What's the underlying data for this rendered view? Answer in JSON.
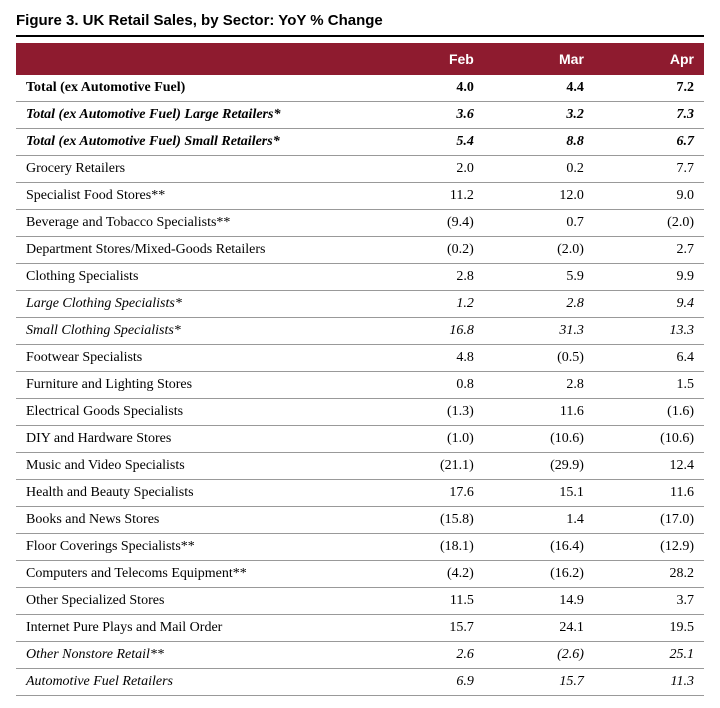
{
  "title": "Figure 3. UK Retail Sales, by Sector: YoY % Change",
  "table": {
    "type": "table",
    "header_bg": "#8e1b2f",
    "header_fg": "#ffffff",
    "border_color": "#999999",
    "columns": [
      "",
      "Feb",
      "Mar",
      "Apr"
    ],
    "rows": [
      {
        "label": "Total (ex Automotive Fuel)",
        "feb": "4.0",
        "mar": "4.4",
        "apr": "7.2",
        "style": "bold"
      },
      {
        "label": "Total (ex Automotive Fuel) Large Retailers*",
        "feb": "3.6",
        "mar": "3.2",
        "apr": "7.3",
        "style": "bold-italic"
      },
      {
        "label": "Total (ex Automotive Fuel) Small Retailers*",
        "feb": "5.4",
        "mar": "8.8",
        "apr": "6.7",
        "style": "bold-italic"
      },
      {
        "label": "Grocery Retailers",
        "feb": "2.0",
        "mar": "0.2",
        "apr": "7.7",
        "style": ""
      },
      {
        "label": "Specialist Food Stores**",
        "feb": "11.2",
        "mar": "12.0",
        "apr": "9.0",
        "style": ""
      },
      {
        "label": "Beverage and Tobacco Specialists**",
        "feb": "(9.4)",
        "mar": "0.7",
        "apr": "(2.0)",
        "style": ""
      },
      {
        "label": "Department Stores/Mixed-Goods Retailers",
        "feb": "(0.2)",
        "mar": "(2.0)",
        "apr": "2.7",
        "style": ""
      },
      {
        "label": "Clothing Specialists",
        "feb": "2.8",
        "mar": "5.9",
        "apr": "9.9",
        "style": ""
      },
      {
        "label": "Large Clothing Specialists*",
        "feb": "1.2",
        "mar": "2.8",
        "apr": "9.4",
        "style": "italic"
      },
      {
        "label": "Small Clothing Specialists*",
        "feb": "16.8",
        "mar": "31.3",
        "apr": "13.3",
        "style": "italic"
      },
      {
        "label": "Footwear Specialists",
        "feb": "4.8",
        "mar": "(0.5)",
        "apr": "6.4",
        "style": ""
      },
      {
        "label": "Furniture and Lighting Stores",
        "feb": "0.8",
        "mar": "2.8",
        "apr": "1.5",
        "style": ""
      },
      {
        "label": "Electrical Goods Specialists",
        "feb": "(1.3)",
        "mar": "11.6",
        "apr": "(1.6)",
        "style": ""
      },
      {
        "label": "DIY and Hardware Stores",
        "feb": "(1.0)",
        "mar": "(10.6)",
        "apr": "(10.6)",
        "style": ""
      },
      {
        "label": "Music and Video Specialists",
        "feb": "(21.1)",
        "mar": "(29.9)",
        "apr": "12.4",
        "style": ""
      },
      {
        "label": "Health and Beauty Specialists",
        "feb": "17.6",
        "mar": "15.1",
        "apr": "11.6",
        "style": ""
      },
      {
        "label": "Books and News Stores",
        "feb": "(15.8)",
        "mar": "1.4",
        "apr": "(17.0)",
        "style": ""
      },
      {
        "label": "Floor Coverings Specialists**",
        "feb": "(18.1)",
        "mar": "(16.4)",
        "apr": "(12.9)",
        "style": ""
      },
      {
        "label": "Computers and Telecoms Equipment**",
        "feb": "(4.2)",
        "mar": "(16.2)",
        "apr": "28.2",
        "style": ""
      },
      {
        "label": "Other Specialized Stores",
        "feb": "11.5",
        "mar": "14.9",
        "apr": "3.7",
        "style": ""
      },
      {
        "label": "Internet Pure Plays and Mail Order",
        "feb": "15.7",
        "mar": "24.1",
        "apr": "19.5",
        "style": ""
      },
      {
        "label": "Other Nonstore Retail**",
        "feb": "2.6",
        "mar": "(2.6)",
        "apr": "25.1",
        "style": "italic"
      },
      {
        "label": "Automotive Fuel Retailers",
        "feb": "6.9",
        "mar": "15.7",
        "apr": "11.3",
        "style": "italic"
      }
    ]
  }
}
